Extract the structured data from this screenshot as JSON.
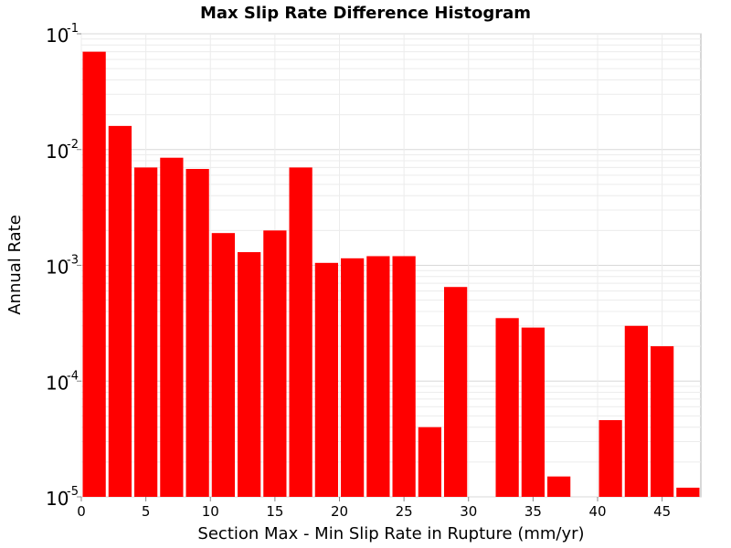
{
  "chart_data": {
    "type": "bar",
    "title": "Max Slip Rate Difference Histogram",
    "xlabel": "Section Max - Min Slip Rate in Rupture (mm/yr)",
    "ylabel": "Annual Rate",
    "xlim": [
      0,
      48
    ],
    "ylim": [
      1e-05,
      0.1
    ],
    "yscale": "log",
    "bin_width": 2,
    "bar_color": "#ff0000",
    "x_ticks": [
      "0",
      "5",
      "10",
      "15",
      "20",
      "25",
      "30",
      "35",
      "40",
      "45"
    ],
    "x_tick_values": [
      0,
      5,
      10,
      15,
      20,
      25,
      30,
      35,
      40,
      45
    ],
    "y_ticks": [
      {
        "value": 0.1,
        "base": "10",
        "exp": "-1"
      },
      {
        "value": 0.01,
        "base": "10",
        "exp": "-2"
      },
      {
        "value": 0.001,
        "base": "10",
        "exp": "-3"
      },
      {
        "value": 0.0001,
        "base": "10",
        "exp": "-4"
      },
      {
        "value": 1e-05,
        "base": "10",
        "exp": "-5"
      }
    ],
    "grid": true,
    "bins": [
      {
        "x": 1,
        "value": 0.07
      },
      {
        "x": 3,
        "value": 0.016
      },
      {
        "x": 5,
        "value": 0.007
      },
      {
        "x": 7,
        "value": 0.0085
      },
      {
        "x": 9,
        "value": 0.0068
      },
      {
        "x": 11,
        "value": 0.0019
      },
      {
        "x": 13,
        "value": 0.0013
      },
      {
        "x": 15,
        "value": 0.002
      },
      {
        "x": 17,
        "value": 0.007
      },
      {
        "x": 19,
        "value": 0.00105
      },
      {
        "x": 21,
        "value": 0.00115
      },
      {
        "x": 23,
        "value": 0.0012
      },
      {
        "x": 25,
        "value": 0.0012
      },
      {
        "x": 27,
        "value": 4e-05
      },
      {
        "x": 29,
        "value": 0.00065
      },
      {
        "x": 31,
        "value": 0
      },
      {
        "x": 33,
        "value": 0.00035
      },
      {
        "x": 35,
        "value": 0.00029
      },
      {
        "x": 37,
        "value": 1.5e-05
      },
      {
        "x": 39,
        "value": 0
      },
      {
        "x": 41,
        "value": 4.6e-05
      },
      {
        "x": 43,
        "value": 0.0003
      },
      {
        "x": 45,
        "value": 0.0002
      },
      {
        "x": 47,
        "value": 1.2e-05
      }
    ]
  }
}
